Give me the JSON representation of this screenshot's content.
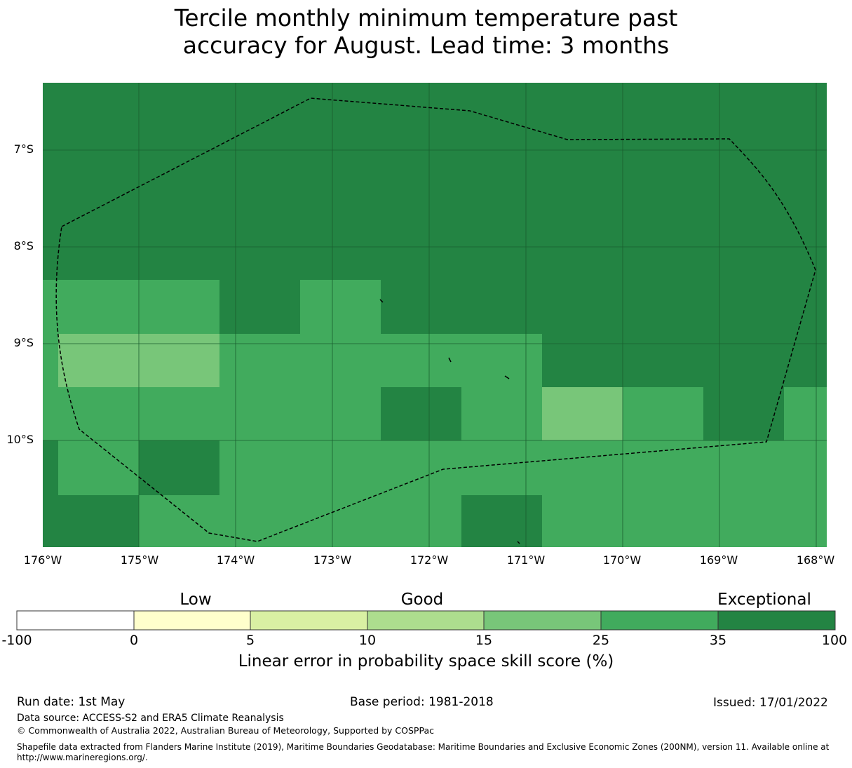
{
  "title": {
    "line1": "Tercile monthly minimum temperature past",
    "line2": "accuracy for August. Lead time: 3 months"
  },
  "map": {
    "lat_labels": [
      "7°S",
      "8°S",
      "9°S",
      "10°S"
    ],
    "lon_labels": [
      "176°W",
      "175°W",
      "174°W",
      "173°W",
      "172°W",
      "171°W",
      "170°W",
      "169°W",
      "168°W"
    ],
    "colors": {
      "skill_35_100": "#238443",
      "skill_25_35": "#41ab5d",
      "skill_15_25": "#78c679"
    },
    "boundary": "dashed-eez-outline"
  },
  "colorbar": {
    "categories": [
      "Low",
      "Good",
      "Exceptional"
    ],
    "ticks": [
      "-100",
      "0",
      "5",
      "10",
      "15",
      "25",
      "35",
      "100"
    ],
    "colors": [
      "#ffffff",
      "#ffffcc",
      "#d9f0a3",
      "#addd8e",
      "#78c679",
      "#41ab5d",
      "#238443"
    ],
    "label": "Linear error in probability space skill score (%)"
  },
  "footer": {
    "run_date": "Run date: 1st May",
    "base_period": "Base period: 1981-2018",
    "issued": "Issued: 17/01/2022",
    "data_source": "Data source: ACCESS-S2 and ERA5 Climate Reanalysis",
    "copyright": "© Commonwealth of Australia 2022, Australian Bureau of Meteorology, Supported by COSPPac",
    "shapefile": "Shapefile data extracted from Flanders Marine Institute (2019), Maritime Boundaries Geodatabase: Maritime Boundaries and Exclusive Economic Zones (200NM), version 11. Available online at http://www.marineregions.org/."
  }
}
